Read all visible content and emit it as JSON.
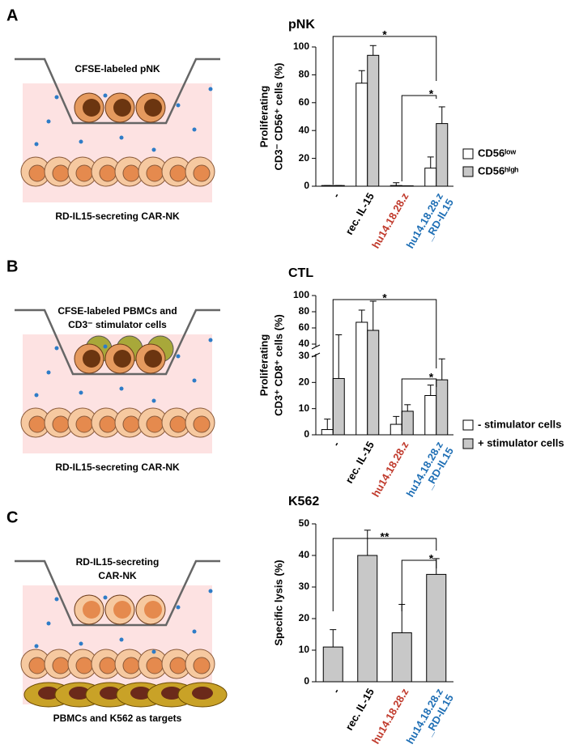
{
  "panels": [
    {
      "letter": "A",
      "diagram_top": [
        "CFSE-labeled pNK"
      ],
      "diagram_bottom": "RD-IL15-secreting CAR-NK"
    },
    {
      "letter": "B",
      "diagram_top": [
        "CFSE-labeled PBMCs and",
        "CD3⁻ stimulator cells"
      ],
      "diagram_bottom": "RD-IL15-secreting CAR-NK"
    },
    {
      "letter": "C",
      "diagram_top": [
        "RD-IL15-secreting",
        "CAR-NK"
      ],
      "diagram_bottom": "PBMCs and K562 as targets"
    }
  ],
  "chart_data": [
    {
      "type": "bar",
      "title": "pNK",
      "ylabel": [
        "Proliferating",
        "CD3⁻ CD56⁺ cells  (%)"
      ],
      "categories": [
        "-",
        "rec. IL-15",
        "hu14.18.28.z",
        "hu14.18.28.z_RD-IL15"
      ],
      "category_colors": [
        "#000000",
        "#000000",
        "#c0392b",
        "#1f6fb5"
      ],
      "series": [
        {
          "name": "CD56ˡᵒʷ",
          "color": "#ffffff",
          "values": [
            0.5,
            74,
            0.5,
            13
          ],
          "errors": [
            0,
            9,
            2,
            8
          ]
        },
        {
          "name": "CD56ʰⁱᵍʰ",
          "color": "#c8c8c8",
          "values": [
            0.5,
            94,
            0.3,
            45
          ],
          "errors": [
            0,
            7,
            0,
            12
          ]
        }
      ],
      "ylim": [
        0,
        100
      ],
      "yticks": [
        0,
        20,
        40,
        60,
        80,
        100
      ],
      "annotations": [
        "*",
        "*"
      ]
    },
    {
      "type": "bar",
      "title": "CTL",
      "ylabel": [
        "Proliferating",
        "CD3⁺ CD8⁺ cells  (%)"
      ],
      "categories": [
        "-",
        "rec. IL-15",
        "hu14.18.28.z",
        "hu14.18.28.z_RD-IL15"
      ],
      "category_colors": [
        "#000000",
        "#000000",
        "#c0392b",
        "#1f6fb5"
      ],
      "series": [
        {
          "name": "- stimulator cells",
          "color": "#ffffff",
          "values": [
            2,
            67,
            4,
            15
          ],
          "errors": [
            4,
            15,
            3,
            4
          ]
        },
        {
          "name": "+ stimulator cells",
          "color": "#c8c8c8",
          "values": [
            21.5,
            57,
            9,
            21
          ],
          "errors": [
            30,
            36,
            2.5,
            8
          ]
        }
      ],
      "ylim": [
        0,
        100
      ],
      "ybreak": [
        30,
        40
      ],
      "yticks": [
        0,
        10,
        20,
        30,
        40,
        60,
        80,
        100
      ],
      "annotations": [
        "*",
        "*"
      ]
    },
    {
      "type": "bar",
      "title": "K562",
      "ylabel": [
        "Specific lysis  (%)"
      ],
      "categories": [
        "-",
        "rec. IL-15",
        "hu14.18.28.z",
        "hu14.18.28.z_RD-IL15"
      ],
      "category_colors": [
        "#000000",
        "#000000",
        "#c0392b",
        "#1f6fb5"
      ],
      "series": [
        {
          "name": "",
          "color": "#c8c8c8",
          "values": [
            11,
            40,
            15.5,
            34
          ],
          "errors": [
            5.5,
            8,
            9,
            5
          ]
        }
      ],
      "ylim": [
        0,
        50
      ],
      "yticks": [
        0,
        10,
        20,
        30,
        40,
        50
      ],
      "annotations": [
        "**",
        "*"
      ]
    }
  ]
}
